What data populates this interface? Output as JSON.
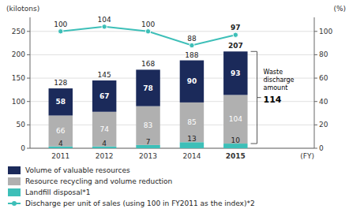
{
  "chart_data": {
    "type": "bar",
    "stacked": true,
    "grid": true,
    "legend": "bottom",
    "data_labels": true,
    "x_label": "(FY)",
    "y_label": "(kilotons)",
    "y2_label": "(%)",
    "x": [
      2011,
      2012,
      2013,
      2014,
      2015
    ],
    "xlim": [
      2010.3,
      2016.8
    ],
    "xticks": [
      2011,
      2012,
      2013,
      2014,
      2015
    ],
    "ylim": [
      0,
      280
    ],
    "yticks": [
      0,
      50,
      100,
      150,
      200,
      250
    ],
    "y2lim": [
      0,
      112
    ],
    "y2ticks": [
      0,
      20,
      40,
      60,
      80,
      100
    ],
    "series": [
      {
        "name": "Landfill disposal*1",
        "color": "#3dbfb8",
        "values": [
          4,
          4,
          7,
          13,
          10
        ]
      },
      {
        "name": "Resource recycling and volume reduction",
        "color": "#b0b0b0",
        "values": [
          66,
          74,
          83,
          85,
          104
        ]
      },
      {
        "name": "Volume of valuable resources",
        "color": "#1b2a5a",
        "values": [
          58,
          67,
          78,
          90,
          93
        ]
      },
      {
        "name": "Discharge per unit of sales (using 100 in FY2011 as the index)*2",
        "type": "line",
        "axis": "y2",
        "marker": "circle",
        "color": "#3dbfb8",
        "values": [
          100,
          104,
          100,
          88,
          97
        ]
      }
    ],
    "totals": [
      128,
      145,
      168,
      188,
      207
    ],
    "annotation": {
      "lines": [
        "Waste",
        "discharge",
        "amount"
      ],
      "value": 114,
      "x": 2015,
      "span": [
        10,
        207
      ]
    }
  }
}
